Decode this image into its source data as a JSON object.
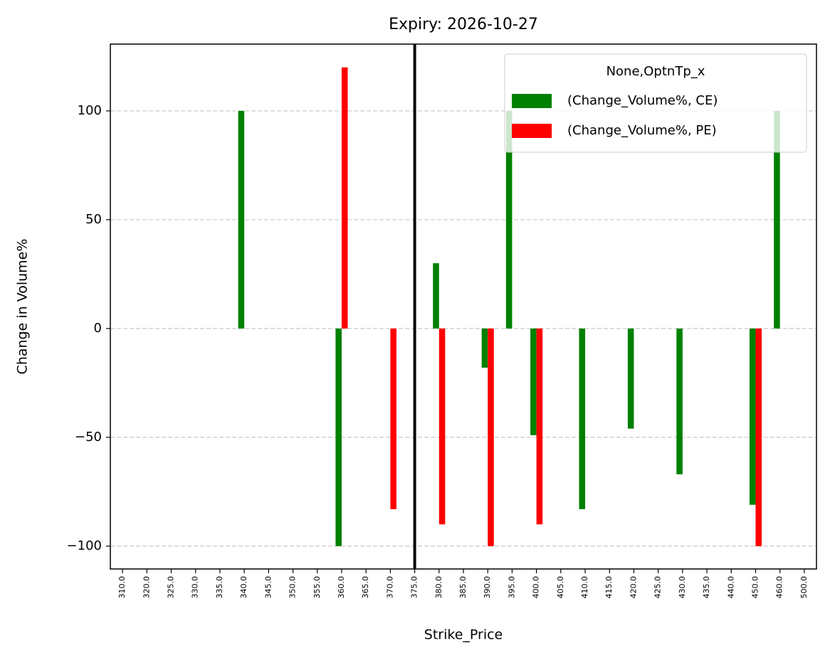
{
  "chart_data": {
    "type": "bar",
    "title": "Expiry: 2026-10-27",
    "x_label": "Strike_Price",
    "y_label": "Change in Volume%",
    "categories": [
      "310.0",
      "320.0",
      "325.0",
      "330.0",
      "335.0",
      "340.0",
      "345.0",
      "350.0",
      "355.0",
      "360.0",
      "365.0",
      "370.0",
      "375.0",
      "380.0",
      "385.0",
      "390.0",
      "395.0",
      "400.0",
      "405.0",
      "410.0",
      "415.0",
      "420.0",
      "425.0",
      "430.0",
      "435.0",
      "440.0",
      "450.0",
      "460.0",
      "500.0"
    ],
    "series": [
      {
        "name": "(Change_Volume%, CE)",
        "color": "#008000",
        "values": [
          null,
          null,
          null,
          null,
          null,
          100,
          null,
          null,
          null,
          -100,
          null,
          null,
          null,
          30,
          null,
          -18,
          100,
          -49,
          null,
          -83,
          null,
          -46,
          null,
          -67,
          null,
          null,
          -81,
          100,
          null
        ]
      },
      {
        "name": "(Change_Volume%, PE)",
        "color": "#ff0000",
        "values": [
          null,
          null,
          null,
          null,
          null,
          null,
          null,
          null,
          null,
          120,
          null,
          -83,
          null,
          -90,
          null,
          -100,
          null,
          -90,
          null,
          null,
          null,
          null,
          null,
          null,
          null,
          null,
          -100,
          null,
          null
        ]
      }
    ],
    "legend_title": "None,OptnTp_x",
    "legend": "upper right",
    "ylim": [
      -110.5,
      130.7
    ],
    "yticks": [
      {
        "value": -100,
        "label": "−100"
      },
      {
        "value": -50,
        "label": "−50"
      },
      0,
      50,
      100
    ],
    "grid": true,
    "vline_at": 375.0
  }
}
